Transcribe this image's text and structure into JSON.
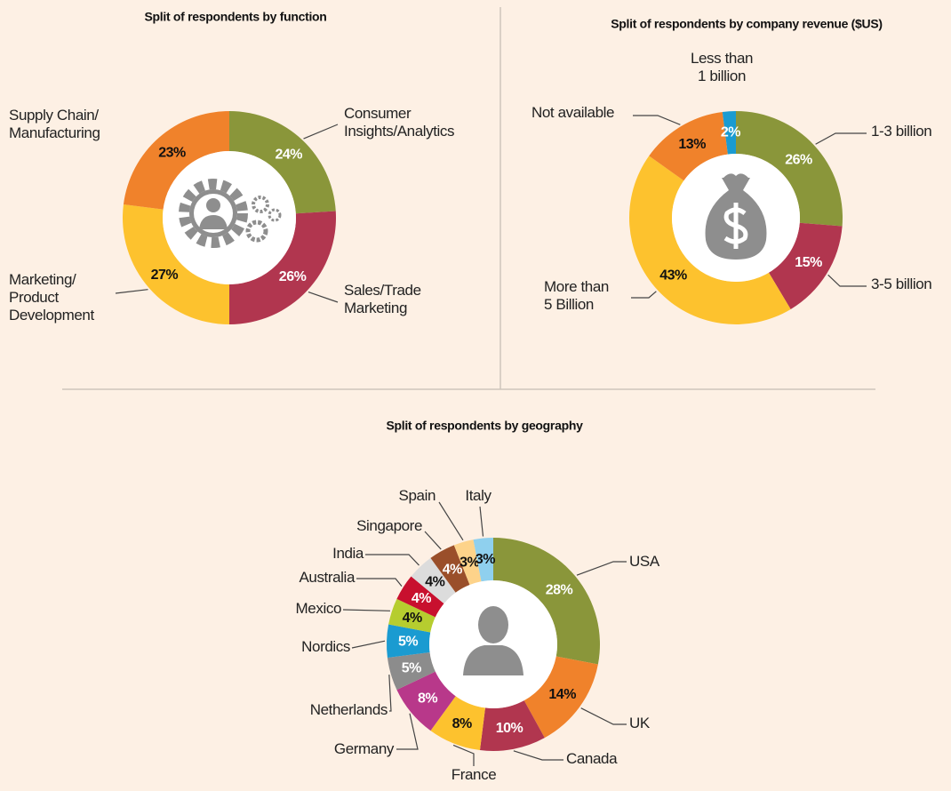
{
  "chart_data": [
    {
      "type": "donut",
      "title": "Split of respondents by function",
      "categories": [
        "Consumer\nInsights/Analytics",
        "Sales/Trade\nMarketing",
        "Marketing/\nProduct\nDevelopment",
        "Supply Chain/\nManufacturing"
      ],
      "values": [
        24,
        26,
        27,
        23
      ],
      "value_labels": [
        "24%",
        "26%",
        "27%",
        "23%"
      ],
      "colors": [
        "#8a963a",
        "#b1364f",
        "#fdc22e",
        "#f0822b"
      ]
    },
    {
      "type": "donut",
      "title": "Split of respondents by company revenue ($US)",
      "categories": [
        "1-3 billion",
        "3-5 billion",
        "More than\n5 Billion",
        "Not available",
        "Less than\n1 billion"
      ],
      "values": [
        26,
        15,
        43,
        13,
        2
      ],
      "value_labels": [
        "26%",
        "15%",
        "43%",
        "13%",
        "2%"
      ],
      "colors": [
        "#8a963a",
        "#b1364f",
        "#fdc22e",
        "#f0822b",
        "#1a9bd1"
      ]
    },
    {
      "type": "donut",
      "title": "Split of respondents by geography",
      "categories": [
        "USA",
        "UK",
        "Canada",
        "France",
        "Germany",
        "Netherlands",
        "Nordics",
        "Mexico",
        "Australia",
        "India",
        "Singapore",
        "Spain",
        "Italy"
      ],
      "values": [
        28,
        14,
        10,
        8,
        8,
        5,
        5,
        4,
        4,
        4,
        4,
        3,
        3
      ],
      "value_labels": [
        "28%",
        "14%",
        "10%",
        "8%",
        "8%",
        "5%",
        "5%",
        "4%",
        "4%",
        "4%",
        "4%",
        "3%",
        "3%"
      ],
      "colors": [
        "#8a963a",
        "#f0822b",
        "#b1364f",
        "#fdc22e",
        "#b8388a",
        "#8c8c8c",
        "#1a9bd1",
        "#b6cd2f",
        "#c8102e",
        "#dcdcdc",
        "#9a4f2a",
        "#fdd38a",
        "#8fd0ee"
      ]
    }
  ]
}
